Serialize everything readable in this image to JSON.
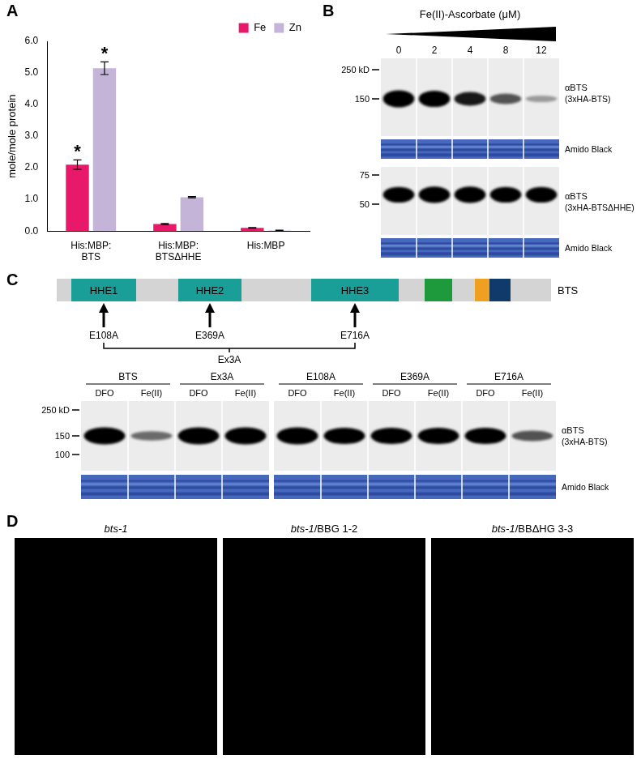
{
  "chart_data": {
    "type": "bar",
    "panel": "A",
    "categories": [
      [
        "His:MBP:",
        "BTS"
      ],
      [
        "His:MBP:",
        "BTSΔHHE"
      ],
      [
        "His:MBP"
      ]
    ],
    "y_label": "mole/mole protein",
    "ylim": [
      0,
      6
    ],
    "yticks": [
      {
        "value": 0,
        "label": "0.0"
      },
      {
        "value": 1,
        "label": "1.0"
      },
      {
        "value": 2,
        "label": "2.0"
      },
      {
        "value": 3,
        "label": "3.0"
      },
      {
        "value": 4,
        "label": "4.0"
      },
      {
        "value": 5,
        "label": "5.0"
      },
      {
        "value": 6,
        "label": "6.0"
      }
    ],
    "grid": false,
    "legend": "top-right",
    "series": [
      {
        "name": "Fe",
        "color": "#e8196b",
        "values": [
          2.1,
          0.22,
          0.1
        ],
        "errors": [
          0.15,
          0.02,
          0.01
        ],
        "annotations": [
          "*",
          null,
          null
        ]
      },
      {
        "name": "Zn",
        "color": "#c4b4d8",
        "values": [
          5.15,
          1.07,
          0.02
        ],
        "errors": [
          0.2,
          0.02,
          0.01
        ],
        "annotations": [
          "*",
          null,
          null
        ]
      }
    ]
  },
  "panel_b": {
    "label": "B",
    "treatment": "Fe(II)-Ascorbate (μM)",
    "lanes": [
      0,
      2,
      4,
      8,
      12
    ],
    "blots": [
      {
        "markers": [
          {
            "value": 250,
            "label": "250 kD"
          },
          150
        ],
        "band_kd": 150,
        "antibody": "αBTS",
        "construct": "(3xHA-BTS)",
        "band_intensity": [
          1,
          0.95,
          0.75,
          0.5,
          0.2
        ],
        "stain": "Amido Black"
      },
      {
        "markers": [
          75,
          50
        ],
        "band_kd": 57,
        "antibody": "αBTS",
        "construct": "(3xHA-BTSΔHHE)",
        "band_intensity": [
          0.9,
          0.95,
          0.95,
          0.9,
          0.9
        ],
        "stain": "Amido Black"
      }
    ]
  },
  "panel_c": {
    "label": "C",
    "protein": "BTS",
    "domains": [
      "HHE1",
      "HHE2",
      "HHE3"
    ],
    "mutations": [
      "E108A",
      "E369A",
      "E716A"
    ],
    "combined": "Ex3A",
    "blot": {
      "markers": [
        {
          "value": 250,
          "label": "250 kD"
        },
        150,
        100
      ],
      "band_kd": 150,
      "antibody": "αBTS",
      "construct": "(3xHA-BTS)",
      "stain": "Amido Black",
      "groups": [
        {
          "name": "BTS",
          "lanes": [
            "DFO",
            "Fe(II)"
          ],
          "band_intensity": [
            1,
            0.4
          ]
        },
        {
          "name": "Ex3A",
          "lanes": [
            "DFO",
            "Fe(II)"
          ],
          "band_intensity": [
            1,
            1
          ]
        },
        {
          "name": "E108A",
          "lanes": [
            "DFO",
            "Fe(II)"
          ],
          "band_intensity": [
            1,
            0.95
          ]
        },
        {
          "name": "E369A",
          "lanes": [
            "DFO",
            "Fe(II)"
          ],
          "band_intensity": [
            0.95,
            0.95
          ]
        },
        {
          "name": "E716A",
          "lanes": [
            "DFO",
            "Fe(II)"
          ],
          "band_intensity": [
            0.95,
            0.5
          ]
        }
      ]
    }
  },
  "panel_d": {
    "label": "D",
    "images": [
      {
        "title": "bts-1"
      },
      {
        "title": "bts-1/BBG 1-2"
      },
      {
        "title": "bts-1/BBΔHG 3-3"
      }
    ]
  }
}
